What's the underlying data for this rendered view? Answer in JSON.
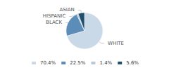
{
  "chart_data": {
    "type": "pie",
    "categories": [
      "WHITE",
      "BLACK",
      "HISPANIC",
      "ASIAN"
    ],
    "values": [
      70.4,
      22.5,
      1.4,
      5.6
    ],
    "value_labels": [
      "70.4%",
      "22.5%",
      "1.4%",
      "5.6%"
    ],
    "colors": [
      "#c9d9e8",
      "#5b8db8",
      "#b8c8d8",
      "#1f4e6e"
    ],
    "legend": "bottom"
  }
}
